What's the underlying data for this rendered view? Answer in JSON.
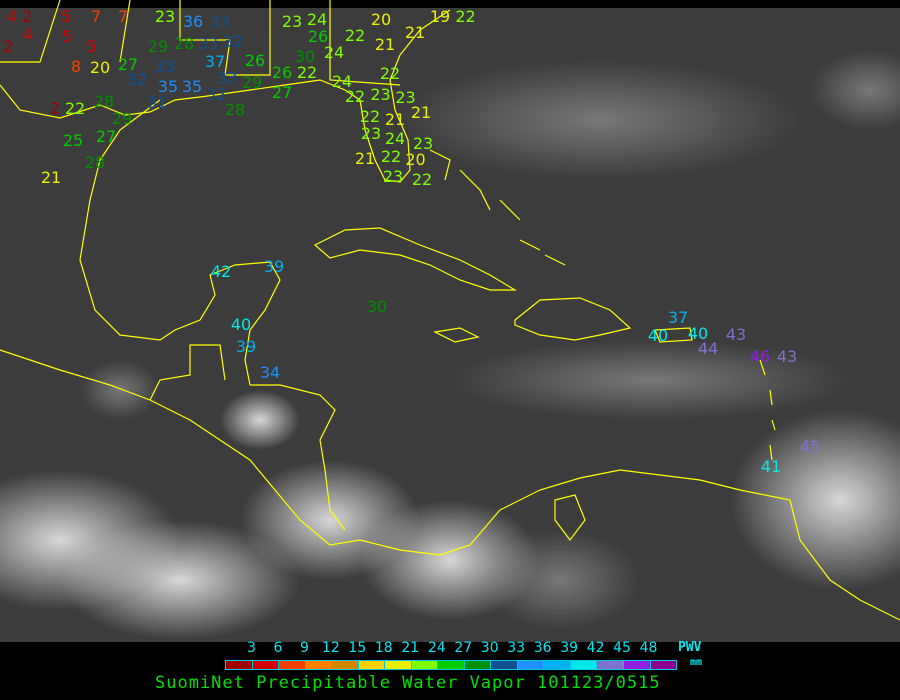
{
  "title": "SuomiNet Precipitable Water Vapor 101123/0515",
  "legend": {
    "unit_line1": "PWV",
    "unit_line2": "mm",
    "ticks": [
      "3",
      "6",
      "9",
      "12",
      "15",
      "18",
      "21",
      "24",
      "27",
      "30",
      "33",
      "36",
      "39",
      "42",
      "45",
      "48"
    ],
    "colors": [
      "#a00000",
      "#d40000",
      "#f04000",
      "#ff8000",
      "#d08800",
      "#ffd000",
      "#e8f000",
      "#80ff00",
      "#00cc00",
      "#009000",
      "#105090",
      "#2090ff",
      "#00b0f0",
      "#00e8e8",
      "#8070d0",
      "#9020e0",
      "#900090"
    ]
  },
  "map": {
    "coastline_color": "#ffff00",
    "background": "#3a3a3a"
  },
  "stations": [
    4,
    2,
    5,
    2,
    4,
    5,
    5,
    7,
    7,
    8,
    20,
    27,
    29,
    23,
    28,
    36,
    33,
    33,
    32,
    37,
    33,
    32,
    35,
    35,
    31,
    32,
    22,
    2,
    28,
    29,
    27,
    25,
    28,
    21,
    26,
    33,
    29,
    26,
    27,
    22,
    28,
    23,
    24,
    26,
    30,
    24,
    22,
    20,
    21,
    21,
    19,
    22,
    22,
    24,
    22,
    23,
    23,
    22,
    21,
    23,
    24,
    21,
    23,
    22,
    21,
    20,
    23,
    22,
    42,
    39,
    30,
    40,
    39,
    34,
    40,
    37,
    40,
    44,
    43,
    46,
    43,
    45,
    41
  ]
}
